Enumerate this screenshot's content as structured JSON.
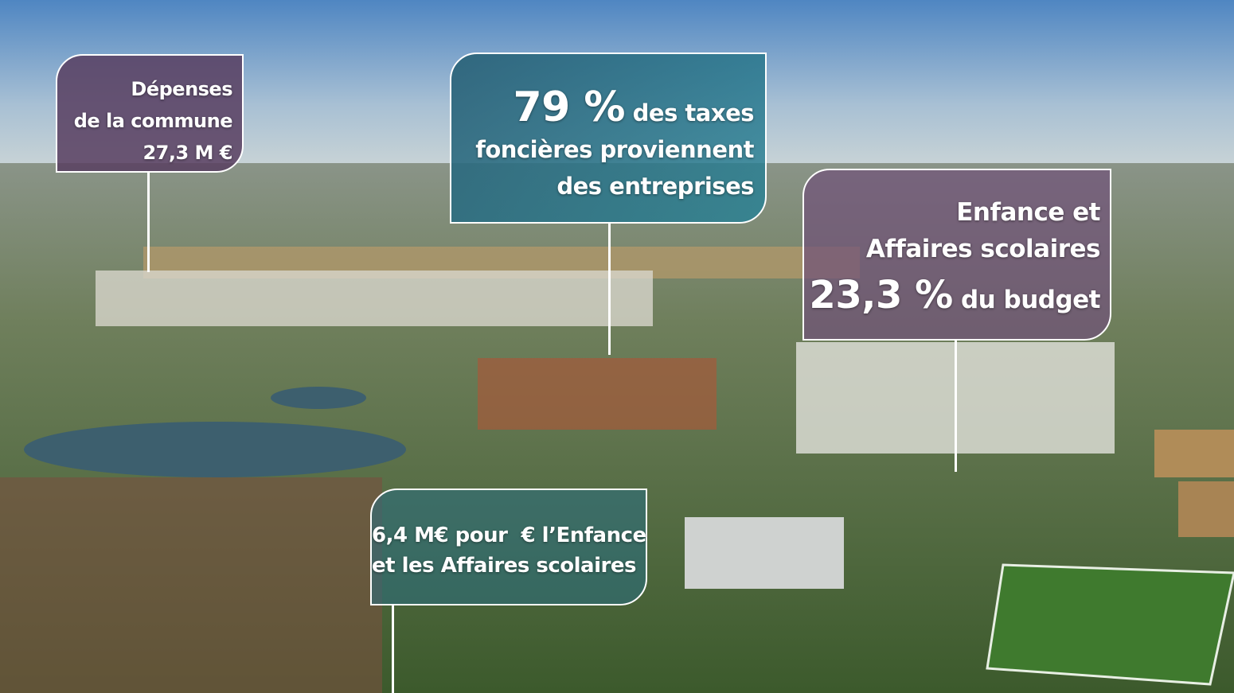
{
  "callouts": [
    {
      "lines": [
        "Dépenses",
        "de la commune",
        "27,3 M €"
      ]
    },
    {
      "highlight": "79 %",
      "lines": [
        "des taxes",
        "foncières proviennent",
        "des entreprises"
      ]
    },
    {
      "lines": [
        "Enfance et",
        "Affaires scolaires"
      ],
      "highlight": "23,3 %",
      "tail": "du budget"
    },
    {
      "lines": [
        "6,4 M€ pour  € l’Enfance",
        "et les Affaires scolaires"
      ]
    }
  ]
}
